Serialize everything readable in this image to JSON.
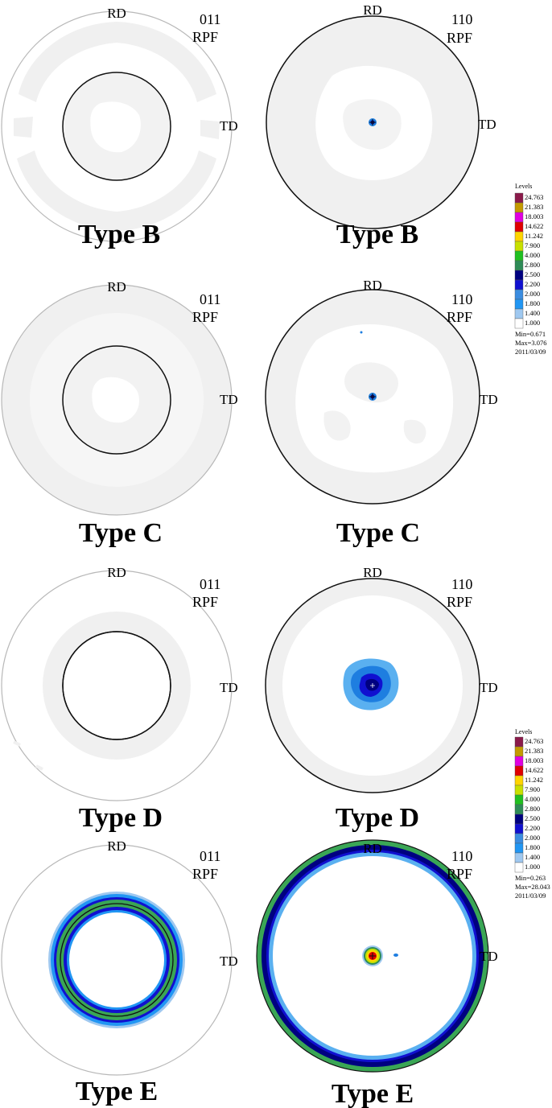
{
  "labels": {
    "rd": "RD",
    "td": "TD",
    "rpf": "RPF",
    "plane_011": "011",
    "plane_110": "110"
  },
  "rows": [
    {
      "title_left": "Type B",
      "title_right": "Type B"
    },
    {
      "title_left": "Type C",
      "title_right": "Type C"
    },
    {
      "title_left": "Type D",
      "title_right": "Type D"
    },
    {
      "title_left": "Type E",
      "title_right": "Type E"
    }
  ],
  "legends": [
    {
      "title": "Levels",
      "levels": [
        "24.763",
        "21.383",
        "18.003",
        "14.622",
        "11.242",
        "7.900",
        "4.000",
        "2.800",
        "2.500",
        "2.200",
        "2.000",
        "1.800",
        "1.400",
        "1.000"
      ],
      "min": "Min=0.671",
      "max": "Max=3.076",
      "date": "2011/03/09"
    },
    {
      "title": "Levels",
      "levels": [
        "24.763",
        "21.383",
        "18.003",
        "14.622",
        "11.242",
        "7.900",
        "4.000",
        "2.800",
        "2.500",
        "2.200",
        "2.000",
        "1.800",
        "1.400",
        "1.000"
      ],
      "min": "Min=0.263",
      "max": "Max=28.043",
      "date": "2011/03/09"
    }
  ],
  "colors": {
    "level_colors": [
      "#8b1a4a",
      "#c49a00",
      "#e000e0",
      "#e00000",
      "#ffd400",
      "#c8e000",
      "#20c020",
      "#2e8b57",
      "#000080",
      "#1010d0",
      "#3a8ce0",
      "#2196f3",
      "#9fc8f0",
      "#ffffff"
    ],
    "light_fill": "#f0f0f0",
    "green": "#3aa655",
    "navy": "#000080",
    "blue": "#1e7ee0",
    "light_blue": "#5ab0f0",
    "pole_red": "#e00000",
    "pole_yellow": "#ffd400"
  }
}
